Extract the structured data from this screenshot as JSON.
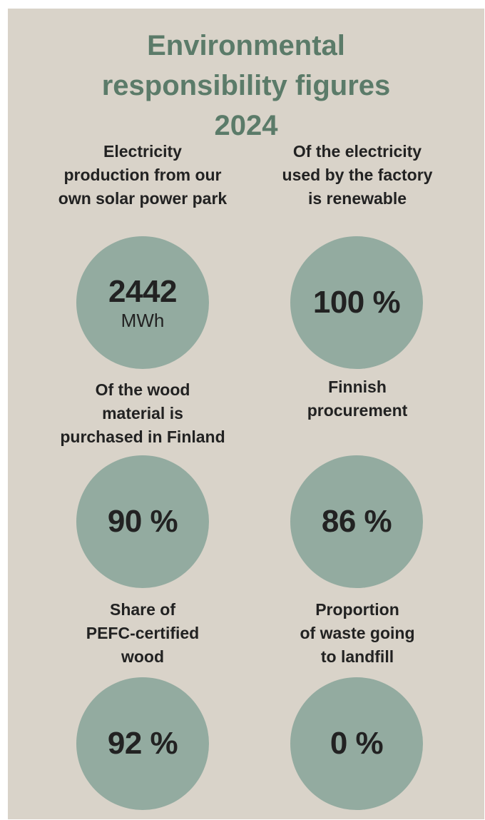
{
  "title": [
    "Environmental",
    "responsibility figures",
    "2024"
  ],
  "colors": {
    "background": "#d9d3c9",
    "title": "#5b7b69",
    "circle": "#93aba0",
    "text": "#222222"
  },
  "stats": [
    {
      "label": [
        "Electricity",
        "production from our",
        "own solar power park"
      ],
      "value": "2442",
      "unit": "MWh"
    },
    {
      "label": [
        "Of the electricity",
        "used by the factory",
        "is renewable"
      ],
      "value": "100 %"
    },
    {
      "label": [
        "Of the wood",
        "material is",
        "purchased in Finland"
      ],
      "value": "90 %"
    },
    {
      "label": [
        "Finnish",
        "procurement"
      ],
      "value": "86 %"
    },
    {
      "label": [
        "Share of",
        "PEFC-certified",
        "wood"
      ],
      "value": "92 %"
    },
    {
      "label": [
        "Proportion",
        "of waste going",
        "to landfill"
      ],
      "value": "0 %"
    }
  ]
}
